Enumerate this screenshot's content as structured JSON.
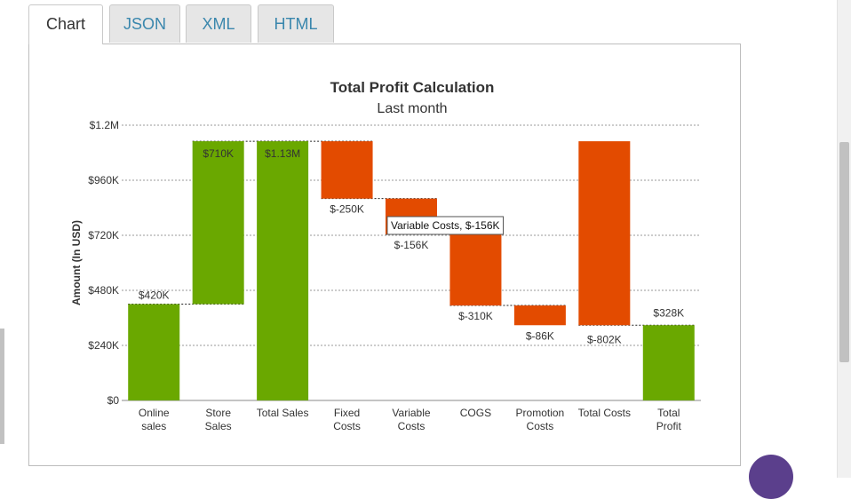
{
  "tabs": [
    {
      "label": "Chart",
      "active": true
    },
    {
      "label": "JSON",
      "active": false
    },
    {
      "label": "XML",
      "active": false
    },
    {
      "label": "HTML",
      "active": false
    }
  ],
  "colors": {
    "positive": "#6aa800",
    "negative": "#e34b00"
  },
  "chart_data": {
    "type": "waterfall",
    "title": "Total Profit Calculation",
    "subtitle": "Last month",
    "ylabel": "Amount (In USD)",
    "xlabel": "",
    "ylim": [
      0,
      1200000
    ],
    "yticks": [
      0,
      240000,
      480000,
      720000,
      960000,
      1200000
    ],
    "ytick_labels": [
      "$0",
      "$240K",
      "$480K",
      "$720K",
      "$960K",
      "$1.2M"
    ],
    "grid": true,
    "categories": [
      {
        "label": "Online\nsales",
        "value": 420000,
        "kind": "delta",
        "data_label": "$420K"
      },
      {
        "label": "Store\nSales",
        "value": 710000,
        "kind": "delta",
        "data_label": "$710K"
      },
      {
        "label": "Total Sales",
        "value": 1130000,
        "kind": "total",
        "data_label": "$1.13M"
      },
      {
        "label": "Fixed\nCosts",
        "value": -250000,
        "kind": "delta",
        "data_label": "$-250K"
      },
      {
        "label": "Variable\nCosts",
        "value": -156000,
        "kind": "delta",
        "data_label": "$-156K"
      },
      {
        "label": "COGS",
        "value": -310000,
        "kind": "delta",
        "data_label": "$-310K"
      },
      {
        "label": "Promotion\nCosts",
        "value": -86000,
        "kind": "delta",
        "data_label": "$-86K"
      },
      {
        "label": "Total Costs",
        "value": -802000,
        "kind": "subtotal",
        "data_label": "$-802K"
      },
      {
        "label": "Total\nProfit",
        "value": 328000,
        "kind": "total",
        "data_label": "$328K"
      }
    ],
    "tooltip": {
      "text": "Variable Costs, $-156K",
      "category_index": 4
    }
  }
}
